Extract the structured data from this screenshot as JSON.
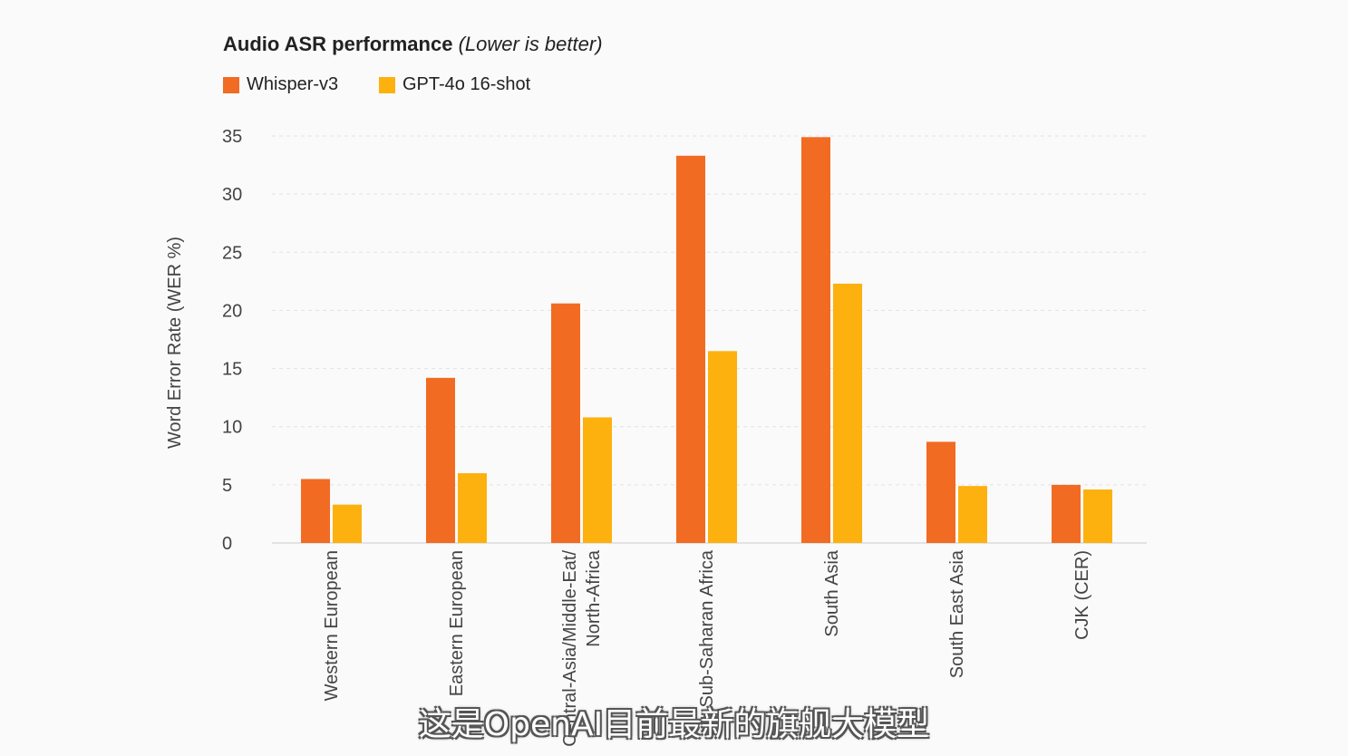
{
  "chart_data": {
    "type": "bar",
    "title": "Audio ASR performance",
    "subtitle": "(Lower is better)",
    "ylabel": "Word Error Rate (WER %)",
    "xlabel": "",
    "ylim": [
      0,
      35
    ],
    "yticks": [
      0,
      5,
      10,
      15,
      20,
      25,
      30,
      35
    ],
    "grid": true,
    "legend_position": "top-left",
    "categories": [
      "Western European",
      "Eastern European",
      "Central-Asia/Middle-Eat/\nNorth-Africa",
      "Sub-Saharan Africa",
      "South Asia",
      "South East Asia",
      "CJK (CER)"
    ],
    "series": [
      {
        "name": "Whisper-v3",
        "color": "#f26b22",
        "values": [
          5.5,
          14.2,
          20.6,
          33.3,
          34.9,
          8.7,
          5.0
        ]
      },
      {
        "name": "GPT-4o 16-shot",
        "color": "#fdb10f",
        "values": [
          3.3,
          6.0,
          10.8,
          16.5,
          22.3,
          4.9,
          4.6
        ]
      }
    ]
  },
  "caption": "这是OpenAI目前最新的旗舰大模型"
}
